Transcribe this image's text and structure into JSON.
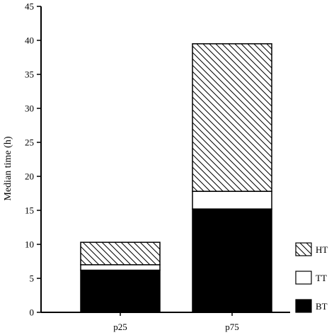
{
  "chart_data": {
    "type": "bar",
    "stacked": true,
    "title": "",
    "xlabel": "",
    "ylabel": "Median time (h)",
    "ylim": [
      0,
      45
    ],
    "yticks": [
      0,
      5,
      10,
      15,
      20,
      25,
      30,
      35,
      40,
      45
    ],
    "categories": [
      "p25",
      "p75"
    ],
    "grid": false,
    "legend_position": "bottom-right",
    "series": [
      {
        "name": "BT",
        "values": [
          6.2,
          15.2
        ],
        "fill": "#000000",
        "pattern": "solid"
      },
      {
        "name": "TT",
        "values": [
          0.8,
          2.6
        ],
        "fill": "#ffffff",
        "pattern": "none"
      },
      {
        "name": "HT",
        "values": [
          3.3,
          21.7
        ],
        "fill": "#ffffff",
        "pattern": "diagonal-hatch"
      }
    ],
    "legend_order": [
      "HT",
      "TT",
      "BT"
    ]
  }
}
